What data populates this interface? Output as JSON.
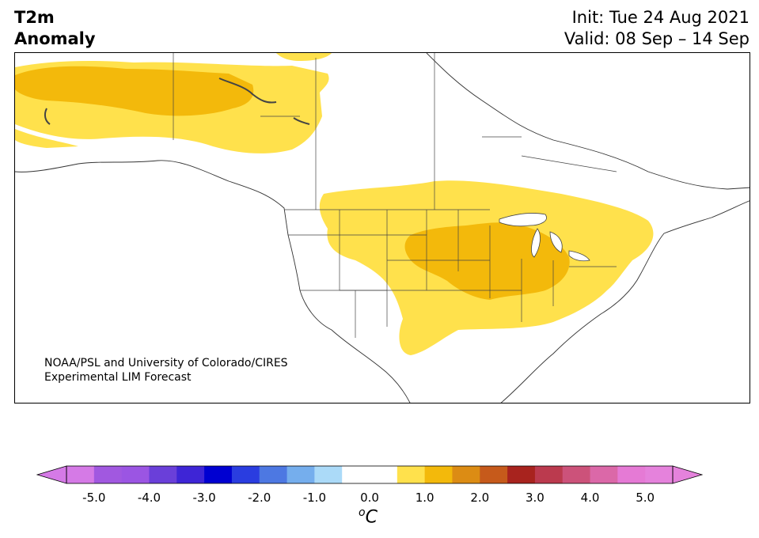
{
  "title": {
    "line1": "T2m",
    "line2": "Anomaly",
    "init": "Init: Tue 24 Aug 2021",
    "valid": "Valid: 08 Sep – 14 Sep"
  },
  "credit": {
    "line1": "NOAA/PSL and University of Colorado/CIRES",
    "line2": "Experimental LIM Forecast"
  },
  "colorbar": {
    "ticks": [
      "-5.0",
      "-4.0",
      "-3.0",
      "-2.0",
      "-1.0",
      "0.0",
      "1.0",
      "2.0",
      "3.0",
      "4.0",
      "5.0"
    ],
    "unit_symbol": "o",
    "unit_letter": "C",
    "levels": [
      {
        "from": -5.0,
        "to": -4.5,
        "color": "#a158e0"
      },
      {
        "from": -4.5,
        "to": -4.0,
        "color": "#9b55e3"
      },
      {
        "from": -4.0,
        "to": -3.5,
        "color": "#6a3fd9"
      },
      {
        "from": -3.5,
        "to": -3.0,
        "color": "#3e25d6"
      },
      {
        "from": -3.0,
        "to": -2.5,
        "color": "#0000d1"
      },
      {
        "from": -2.5,
        "to": -2.0,
        "color": "#2a3de0"
      },
      {
        "from": -2.0,
        "to": -1.5,
        "color": "#4d78e2"
      },
      {
        "from": -1.5,
        "to": -1.0,
        "color": "#75aeed"
      },
      {
        "from": -1.0,
        "to": -0.5,
        "color": "#abdaf8"
      },
      {
        "from": -0.5,
        "to": 0.5,
        "color": "#ffffff"
      },
      {
        "from": 0.5,
        "to": 1.0,
        "color": "#ffe14c"
      },
      {
        "from": 1.0,
        "to": 1.5,
        "color": "#f3b90b"
      },
      {
        "from": 1.5,
        "to": 2.0,
        "color": "#dc8c14"
      },
      {
        "from": 2.0,
        "to": 2.5,
        "color": "#c65a1b"
      },
      {
        "from": 2.5,
        "to": 3.0,
        "color": "#a8231e"
      },
      {
        "from": 3.0,
        "to": 3.5,
        "color": "#bb3a4e"
      },
      {
        "from": 3.5,
        "to": 4.0,
        "color": "#cc527a"
      },
      {
        "from": 4.0,
        "to": 4.5,
        "color": "#db68a8"
      },
      {
        "from": 4.5,
        "to": 5.0,
        "color": "#e57ad5"
      }
    ],
    "under_color": "#d57ae6",
    "over_color": "#e582dc"
  },
  "map": {
    "anomaly_colors": {
      "weak": "#ffe14c",
      "moderate": "#f3b90b"
    },
    "border_color": "#444444"
  }
}
